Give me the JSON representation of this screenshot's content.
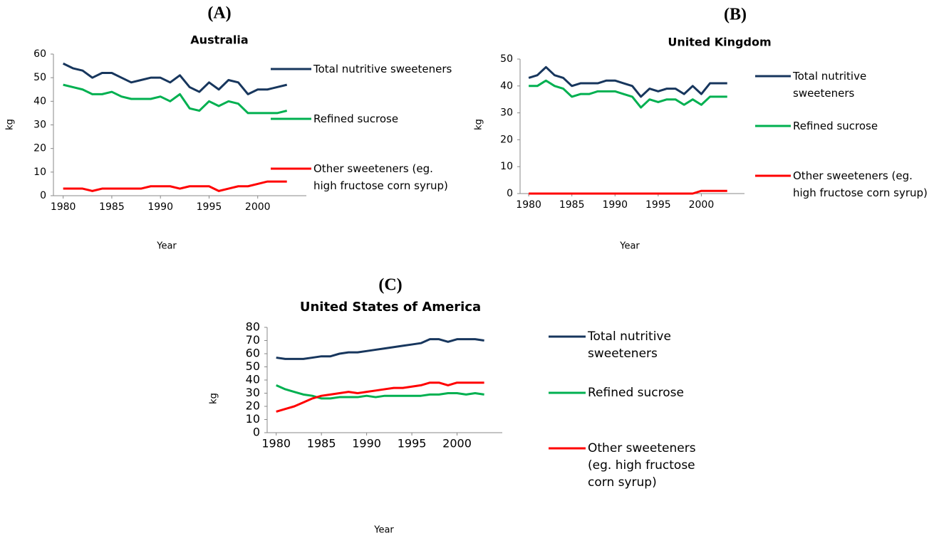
{
  "chart_data": [
    {
      "type": "line",
      "panel_label": "(A)",
      "title": "Australia",
      "xlabel": "Year",
      "ylabel": "kg",
      "x": [
        1980,
        1981,
        1982,
        1983,
        1984,
        1985,
        1986,
        1987,
        1988,
        1989,
        1990,
        1991,
        1992,
        1993,
        1994,
        1995,
        1996,
        1997,
        1998,
        1999,
        2000,
        2001,
        2002,
        2003
      ],
      "xlim": [
        1979,
        2005
      ],
      "xticks": [
        1980,
        1985,
        1990,
        1995,
        2000
      ],
      "ylim": [
        0,
        60
      ],
      "yticks": [
        0,
        10,
        20,
        30,
        40,
        50,
        60
      ],
      "series": [
        {
          "name": "Total nutritive sweeteners",
          "color": "#17365d",
          "values": [
            56,
            54,
            53,
            50,
            52,
            52,
            50,
            48,
            49,
            50,
            50,
            48,
            51,
            46,
            44,
            48,
            45,
            49,
            48,
            43,
            45,
            45,
            46,
            47
          ]
        },
        {
          "name": "Refined sucrose",
          "color": "#00b050",
          "values": [
            47,
            46,
            45,
            43,
            43,
            44,
            42,
            41,
            41,
            41,
            42,
            40,
            43,
            37,
            36,
            40,
            38,
            40,
            39,
            35,
            35,
            35,
            35,
            36
          ]
        },
        {
          "name": "Other sweeteners (eg. high fructose corn syrup)",
          "color": "#ff0000",
          "values": [
            3,
            3,
            3,
            2,
            3,
            3,
            3,
            3,
            3,
            4,
            4,
            4,
            3,
            4,
            4,
            4,
            2,
            3,
            4,
            4,
            5,
            6,
            6,
            6
          ]
        }
      ]
    },
    {
      "type": "line",
      "panel_label": "(B)",
      "title": "United Kingdom",
      "xlabel": "Year",
      "ylabel": "kg",
      "x": [
        1980,
        1981,
        1982,
        1983,
        1984,
        1985,
        1986,
        1987,
        1988,
        1989,
        1990,
        1991,
        1992,
        1993,
        1994,
        1995,
        1996,
        1997,
        1998,
        1999,
        2000,
        2001,
        2002,
        2003
      ],
      "xlim": [
        1979,
        2005
      ],
      "xticks": [
        1980,
        1985,
        1990,
        1995,
        2000
      ],
      "ylim": [
        0,
        50
      ],
      "yticks": [
        0,
        10,
        20,
        30,
        40,
        50
      ],
      "series": [
        {
          "name": "Total nutritive sweeteners",
          "color": "#17365d",
          "values": [
            43,
            44,
            47,
            44,
            43,
            40,
            41,
            41,
            41,
            42,
            42,
            41,
            40,
            36,
            39,
            38,
            39,
            39,
            37,
            40,
            37,
            41,
            41,
            41
          ]
        },
        {
          "name": "Refined sucrose",
          "color": "#00b050",
          "values": [
            40,
            40,
            42,
            40,
            39,
            36,
            37,
            37,
            38,
            38,
            38,
            37,
            36,
            32,
            35,
            34,
            35,
            35,
            33,
            35,
            33,
            36,
            36,
            36
          ]
        },
        {
          "name": "Other sweeteners (eg. high fructose corn syrup)",
          "color": "#ff0000",
          "values": [
            0,
            0,
            0,
            0,
            0,
            0,
            0,
            0,
            0,
            0,
            0,
            0,
            0,
            0,
            0,
            0,
            0,
            0,
            0,
            0,
            1,
            1,
            1,
            1
          ]
        }
      ]
    },
    {
      "type": "line",
      "panel_label": "(C)",
      "title": "United States of America",
      "xlabel": "Year",
      "ylabel": "kg",
      "x": [
        1980,
        1981,
        1982,
        1983,
        1984,
        1985,
        1986,
        1987,
        1988,
        1989,
        1990,
        1991,
        1992,
        1993,
        1994,
        1995,
        1996,
        1997,
        1998,
        1999,
        2000,
        2001,
        2002,
        2003
      ],
      "xlim": [
        1979,
        2005
      ],
      "xticks": [
        1980,
        1985,
        1990,
        1995,
        2000
      ],
      "ylim": [
        0,
        80
      ],
      "yticks": [
        0,
        10,
        20,
        30,
        40,
        50,
        60,
        70,
        80
      ],
      "series": [
        {
          "name": "Total nutritive sweeteners",
          "color": "#17365d",
          "values": [
            57,
            56,
            56,
            56,
            57,
            58,
            58,
            60,
            61,
            61,
            62,
            63,
            64,
            65,
            66,
            67,
            68,
            71,
            71,
            69,
            71,
            71,
            71,
            70
          ]
        },
        {
          "name": "Refined sucrose",
          "color": "#00b050",
          "values": [
            36,
            33,
            31,
            29,
            28,
            26,
            26,
            27,
            27,
            27,
            28,
            27,
            28,
            28,
            28,
            28,
            28,
            29,
            29,
            30,
            30,
            29,
            30,
            29
          ]
        },
        {
          "name": "Other sweeteners (eg. high fructose corn syrup)",
          "color": "#ff0000",
          "values": [
            16,
            18,
            20,
            23,
            26,
            28,
            29,
            30,
            31,
            30,
            31,
            32,
            33,
            34,
            34,
            35,
            36,
            38,
            38,
            36,
            38,
            38,
            38,
            38
          ]
        }
      ]
    }
  ]
}
